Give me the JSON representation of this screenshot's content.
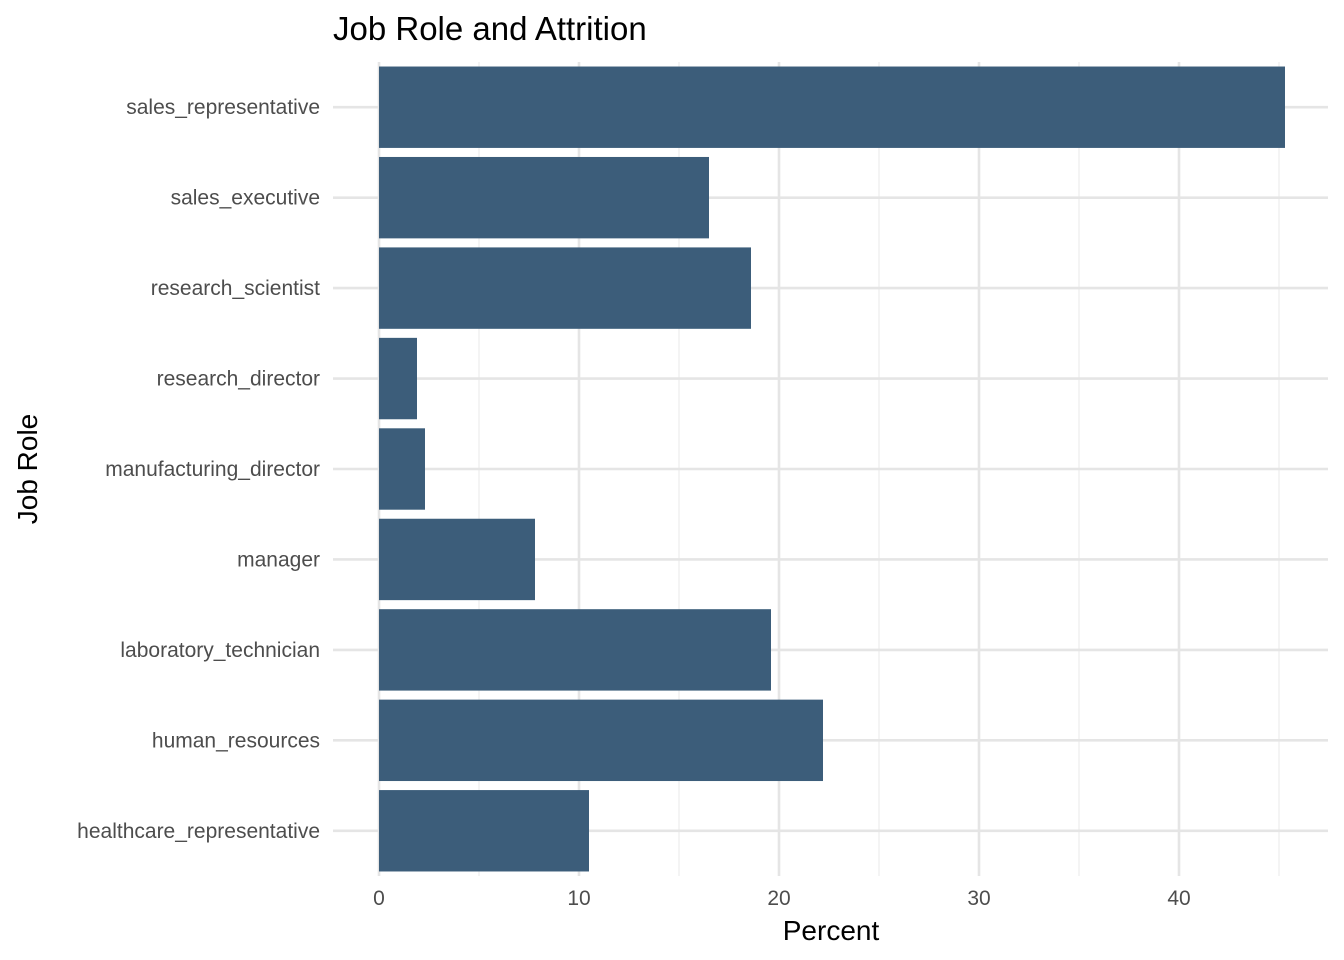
{
  "chart_data": {
    "type": "bar",
    "orientation": "horizontal",
    "title": "Job Role and Attrition",
    "xlabel": "Percent",
    "ylabel": "Job Role",
    "categories": [
      "healthcare_representative",
      "human_resources",
      "laboratory_technician",
      "manager",
      "manufacturing_director",
      "research_director",
      "research_scientist",
      "sales_executive",
      "sales_representative"
    ],
    "values": [
      10.5,
      22.2,
      19.6,
      7.8,
      2.3,
      1.9,
      18.6,
      16.5,
      45.3
    ],
    "xlim": [
      0,
      47
    ],
    "xticks": [
      0,
      10,
      20,
      30,
      40
    ],
    "grid": true,
    "legend": "none",
    "bar_color": "#3c5d7a"
  }
}
